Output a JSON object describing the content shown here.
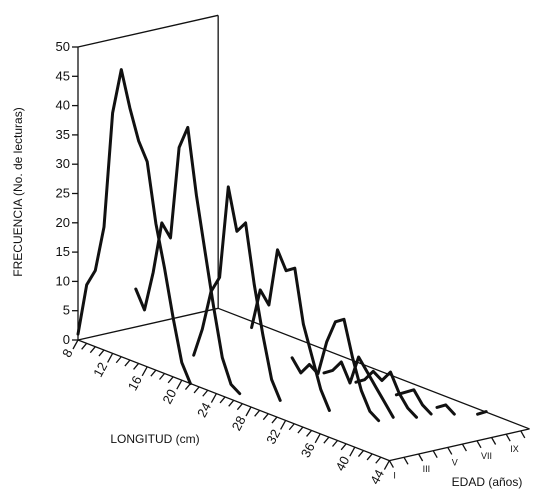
{
  "chart_data": {
    "type": "line",
    "title": "",
    "ylabel": "FRECUENCIA (No. de lecturas)",
    "xlabel": "LONGITUD (cm)",
    "zlabel": "EDAD (años)",
    "ylim": [
      0,
      50
    ],
    "xlim": [
      8,
      44
    ],
    "y_ticks": [
      "0",
      "5",
      "10",
      "15",
      "20",
      "25",
      "30",
      "35",
      "40",
      "45",
      "50"
    ],
    "x_ticks": [
      "8",
      "12",
      "16",
      "20",
      "24",
      "28",
      "32",
      "36",
      "40",
      "44"
    ],
    "z_ticks": [
      "I",
      "III",
      "V",
      "VII",
      "IX"
    ],
    "grid": false,
    "series": [
      {
        "name": "",
        "z": 0,
        "points": [
          [
            8,
            1
          ],
          [
            9,
            10
          ],
          [
            10,
            13
          ],
          [
            11,
            21
          ],
          [
            12,
            41
          ],
          [
            13,
            49
          ],
          [
            14,
            43
          ],
          [
            15,
            38
          ],
          [
            16,
            35
          ],
          [
            17,
            25
          ],
          [
            18,
            18
          ],
          [
            19,
            10
          ],
          [
            20,
            3
          ],
          [
            21,
            0
          ]
        ]
      },
      {
        "name": "",
        "z": 1,
        "points": [
          [
            13,
            11
          ],
          [
            14,
            8
          ],
          [
            15,
            15
          ],
          [
            16,
            24
          ],
          [
            17,
            22
          ],
          [
            18,
            38
          ],
          [
            19,
            42
          ],
          [
            20,
            31
          ],
          [
            21,
            22
          ],
          [
            22,
            13
          ],
          [
            23,
            5
          ],
          [
            24,
            1
          ],
          [
            25,
            0
          ]
        ]
      },
      {
        "name": "",
        "z": 2,
        "points": [
          [
            18,
            2
          ],
          [
            19,
            7
          ],
          [
            20,
            14
          ],
          [
            21,
            17
          ],
          [
            22,
            33
          ],
          [
            23,
            26
          ],
          [
            24,
            28
          ],
          [
            25,
            18
          ],
          [
            26,
            10
          ],
          [
            27,
            3
          ],
          [
            28,
            0
          ]
        ]
      },
      {
        "name": "",
        "z": 3,
        "points": [
          [
            23,
            9
          ],
          [
            24,
            16
          ],
          [
            25,
            14
          ],
          [
            26,
            24
          ],
          [
            27,
            21
          ],
          [
            28,
            22
          ],
          [
            29,
            13
          ],
          [
            30,
            8
          ],
          [
            31,
            3
          ],
          [
            32,
            0
          ]
        ]
      },
      {
        "name": "",
        "z": 4,
        "points": [
          [
            26,
            5
          ],
          [
            27,
            3
          ],
          [
            28,
            5
          ],
          [
            29,
            4
          ],
          [
            30,
            10
          ],
          [
            31,
            14
          ],
          [
            32,
            15
          ],
          [
            33,
            9
          ],
          [
            34,
            4
          ],
          [
            35,
            1
          ],
          [
            36,
            0
          ]
        ]
      },
      {
        "name": "",
        "z": 5,
        "points": [
          [
            28,
            3
          ],
          [
            29,
            4
          ],
          [
            30,
            6
          ],
          [
            31,
            3
          ],
          [
            32,
            8
          ],
          [
            33,
            6
          ],
          [
            34,
            4
          ],
          [
            35,
            2
          ],
          [
            36,
            0
          ]
        ]
      },
      {
        "name": "",
        "z": 6,
        "points": [
          [
            30,
            2
          ],
          [
            31,
            3
          ],
          [
            32,
            5
          ],
          [
            33,
            4
          ],
          [
            34,
            6
          ],
          [
            35,
            3
          ],
          [
            36,
            1
          ],
          [
            37,
            0
          ]
        ]
      },
      {
        "name": "",
        "z": 7,
        "points": [
          [
            33,
            1
          ],
          [
            34,
            2
          ],
          [
            35,
            3
          ],
          [
            36,
            1
          ],
          [
            37,
            0
          ]
        ]
      },
      {
        "name": "",
        "z": 8,
        "points": [
          [
            36,
            0
          ],
          [
            37,
            1
          ],
          [
            38,
            0
          ]
        ]
      },
      {
        "name": "",
        "z": 9,
        "points": [
          [
            39,
            0
          ],
          [
            40,
            1
          ]
        ]
      }
    ]
  }
}
